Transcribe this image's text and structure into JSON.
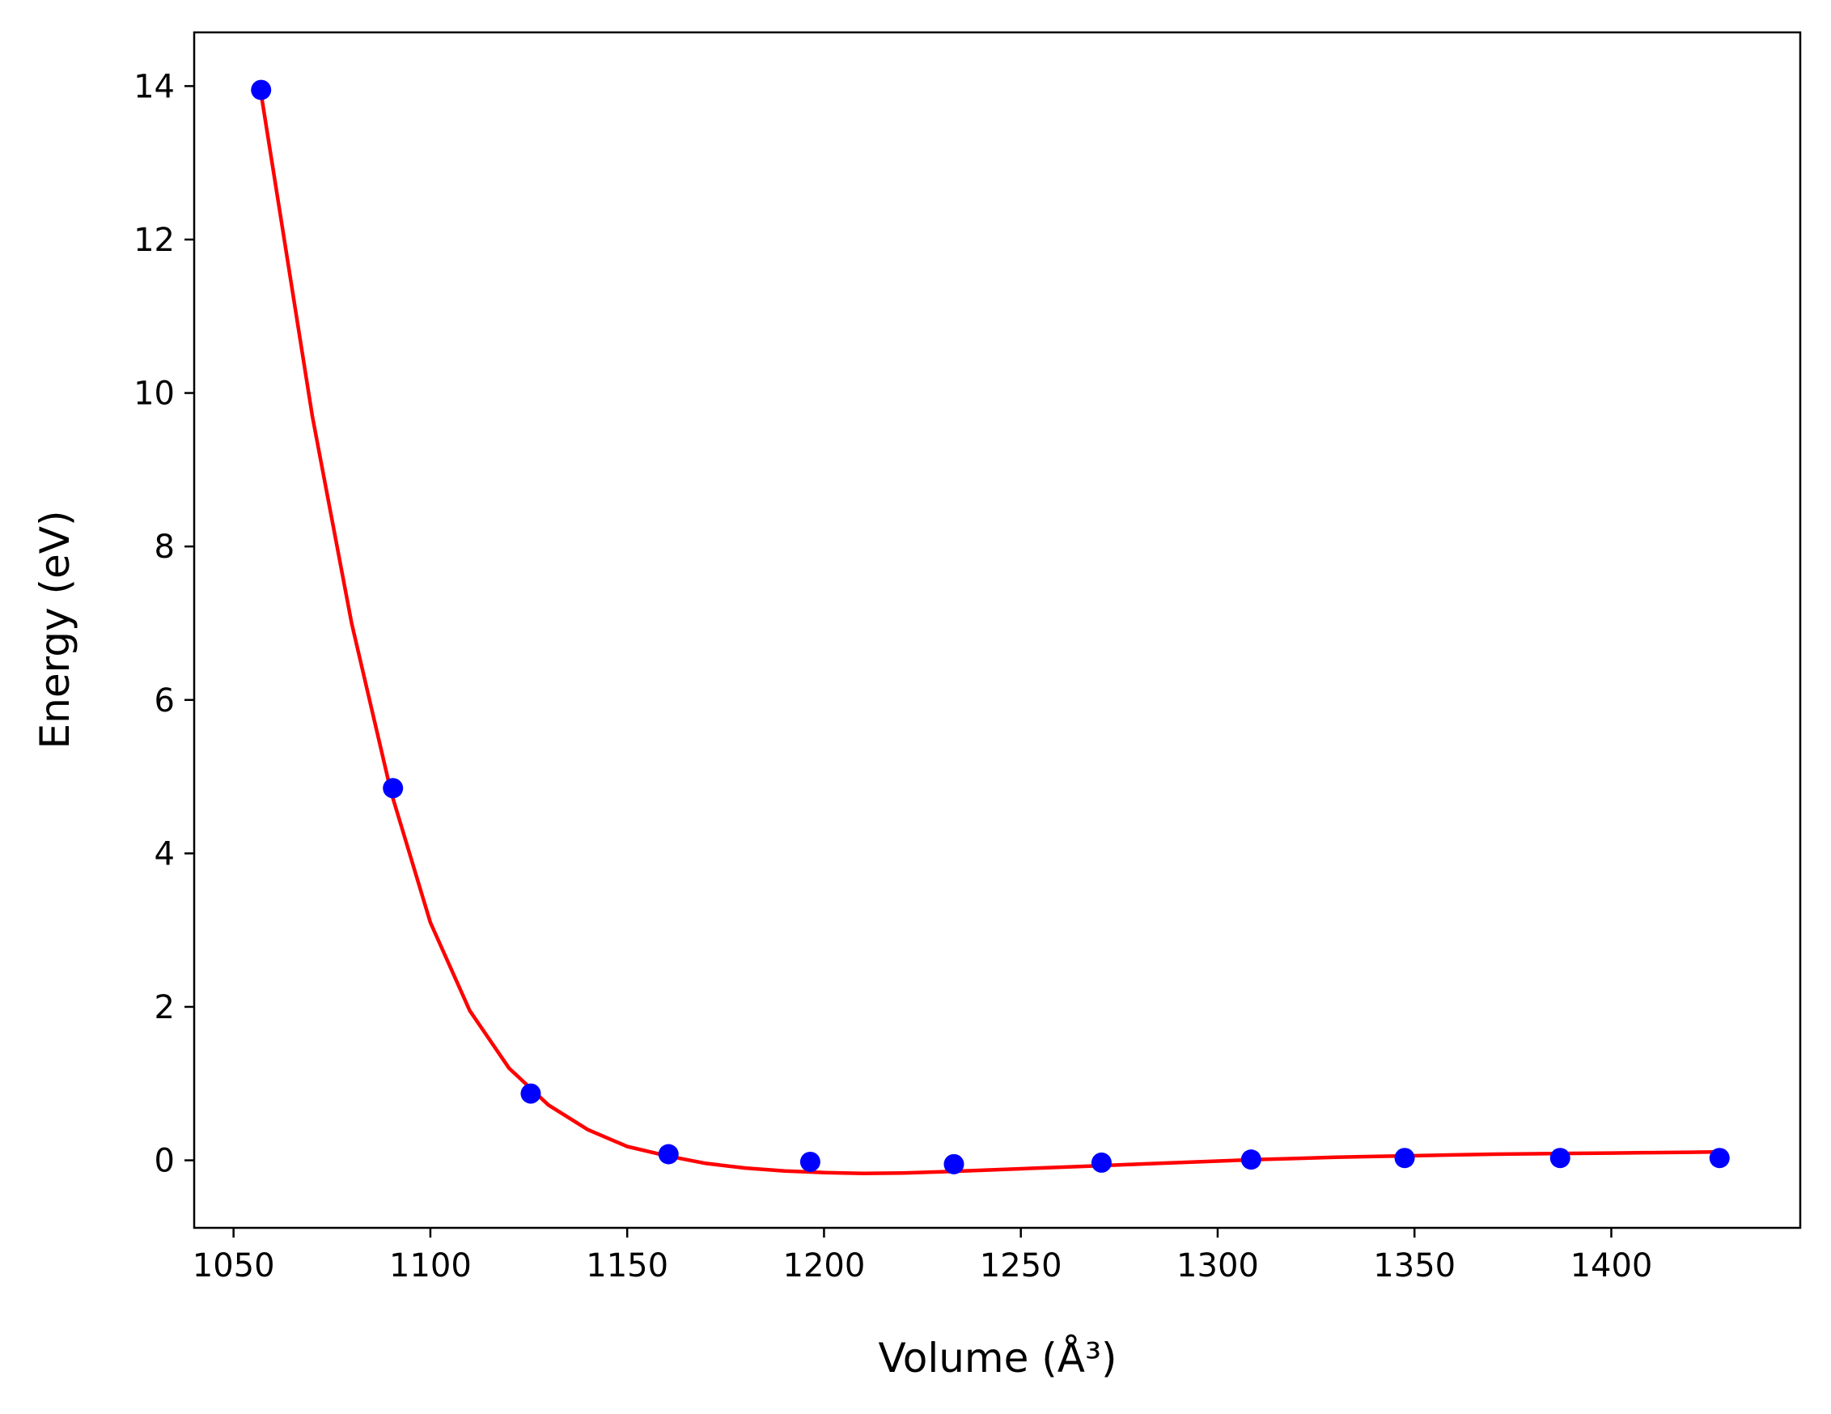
{
  "chart_data": {
    "type": "scatter",
    "xlabel": "Volume (Å³)",
    "ylabel": "Energy (eV)",
    "xlim": [
      1040,
      1448
    ],
    "ylim": [
      -0.88,
      14.7
    ],
    "x_ticks": [
      1050,
      1100,
      1150,
      1200,
      1250,
      1300,
      1350,
      1400
    ],
    "y_ticks": [
      0,
      2,
      4,
      6,
      8,
      10,
      12,
      14
    ],
    "grid": false,
    "legend": "none",
    "series": [
      {
        "kind": "points",
        "color": "#0000ff",
        "x": [
          1057,
          1090.5,
          1125.5,
          1160.5,
          1196.5,
          1233,
          1270.5,
          1308.5,
          1347.5,
          1387,
          1427.5
        ],
        "y": [
          13.95,
          4.85,
          0.87,
          0.08,
          -0.02,
          -0.05,
          -0.03,
          0.01,
          0.03,
          0.03,
          0.03
        ]
      },
      {
        "kind": "fit-curve",
        "color": "#ff0000",
        "x": [
          1057,
          1070,
          1080,
          1090,
          1100,
          1110,
          1120,
          1130,
          1140,
          1150,
          1160,
          1170,
          1180,
          1190,
          1200,
          1210,
          1220,
          1230,
          1240,
          1250,
          1260,
          1270,
          1280,
          1290,
          1300,
          1310,
          1320,
          1330,
          1340,
          1350,
          1360,
          1370,
          1380,
          1390,
          1400,
          1410,
          1420,
          1427.5
        ],
        "y": [
          13.9,
          9.7,
          7.0,
          4.8,
          3.1,
          1.95,
          1.2,
          0.72,
          0.4,
          0.18,
          0.06,
          -0.04,
          -0.1,
          -0.14,
          -0.16,
          -0.17,
          -0.165,
          -0.15,
          -0.13,
          -0.11,
          -0.09,
          -0.07,
          -0.05,
          -0.03,
          -0.01,
          0.01,
          0.025,
          0.04,
          0.05,
          0.06,
          0.07,
          0.08,
          0.085,
          0.09,
          0.095,
          0.1,
          0.105,
          0.11
        ]
      }
    ]
  }
}
